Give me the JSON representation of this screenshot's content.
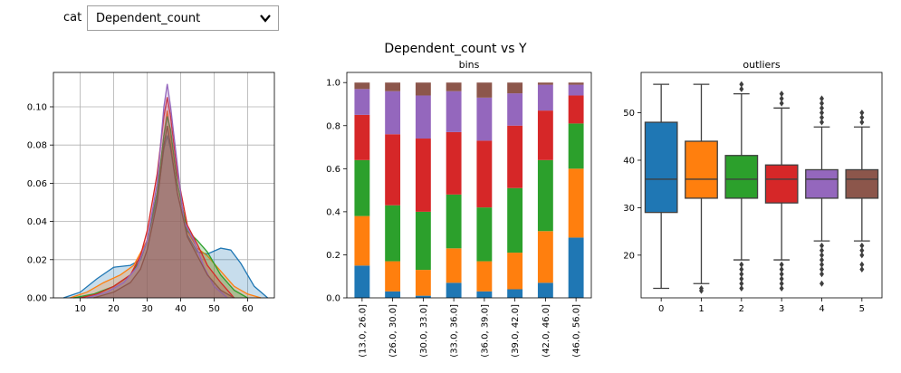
{
  "widget": {
    "label": "cat",
    "selected": "Dependent_count"
  },
  "colors": [
    "#1f77b4",
    "#ff7f0e",
    "#2ca02c",
    "#d62728",
    "#9467bd",
    "#8c564b"
  ],
  "chart_data": [
    {
      "type": "area",
      "subtitle": "",
      "xlim": [
        2,
        68
      ],
      "ylim": [
        0,
        0.118
      ],
      "xticks": [
        10,
        20,
        30,
        40,
        50,
        60
      ],
      "yticks": [
        0.0,
        0.02,
        0.04,
        0.06,
        0.08,
        0.1
      ],
      "ytick_labels": [
        "0.00",
        "0.02",
        "0.04",
        "0.06",
        "0.08",
        "0.10"
      ],
      "grid": true,
      "series": [
        {
          "x": [
            5,
            10,
            15,
            20,
            25,
            28,
            30,
            33,
            35,
            36,
            37,
            39,
            42,
            45,
            48,
            52,
            55,
            58,
            62,
            66
          ],
          "y": [
            0,
            0.003,
            0.01,
            0.016,
            0.017,
            0.02,
            0.03,
            0.052,
            0.078,
            0.085,
            0.078,
            0.055,
            0.033,
            0.024,
            0.023,
            0.026,
            0.025,
            0.018,
            0.006,
            0
          ]
        },
        {
          "x": [
            7,
            12,
            17,
            22,
            26,
            30,
            33,
            35,
            36,
            37,
            39,
            42,
            45,
            48,
            52,
            56,
            60,
            64
          ],
          "y": [
            0,
            0.003,
            0.008,
            0.012,
            0.017,
            0.03,
            0.055,
            0.085,
            0.098,
            0.085,
            0.06,
            0.035,
            0.026,
            0.022,
            0.014,
            0.006,
            0.002,
            0
          ]
        },
        {
          "x": [
            8,
            14,
            20,
            25,
            28,
            30,
            33,
            35,
            36,
            37,
            39,
            42,
            45,
            48,
            52,
            56,
            60
          ],
          "y": [
            0,
            0.002,
            0.006,
            0.012,
            0.02,
            0.03,
            0.055,
            0.085,
            0.095,
            0.088,
            0.06,
            0.035,
            0.03,
            0.024,
            0.012,
            0.004,
            0
          ]
        },
        {
          "x": [
            10,
            15,
            20,
            25,
            28,
            30,
            33,
            35,
            36,
            37,
            39,
            42,
            45,
            48,
            52,
            56
          ],
          "y": [
            0,
            0.002,
            0.006,
            0.012,
            0.022,
            0.035,
            0.065,
            0.095,
            0.105,
            0.095,
            0.065,
            0.038,
            0.028,
            0.017,
            0.008,
            0
          ]
        },
        {
          "x": [
            12,
            18,
            23,
            27,
            30,
            33,
            35,
            36,
            37,
            39,
            41,
            44,
            47,
            50,
            54
          ],
          "y": [
            0,
            0.003,
            0.008,
            0.016,
            0.03,
            0.06,
            0.1,
            0.112,
            0.1,
            0.07,
            0.04,
            0.03,
            0.016,
            0.006,
            0
          ]
        },
        {
          "x": [
            14,
            20,
            25,
            28,
            30,
            33,
            35,
            36,
            37,
            39,
            42,
            45,
            48,
            52,
            56
          ],
          "y": [
            0,
            0.003,
            0.008,
            0.015,
            0.025,
            0.05,
            0.08,
            0.09,
            0.08,
            0.055,
            0.032,
            0.022,
            0.012,
            0.004,
            0
          ]
        }
      ]
    },
    {
      "type": "bar",
      "subtitle": "bins",
      "stacked": true,
      "categories": [
        "(13.0, 26.0]",
        "(26.0, 30.0]",
        "(30.0, 33.0]",
        "(33.0, 36.0]",
        "(36.0, 39.0]",
        "(39.0, 42.0]",
        "(42.0, 46.0]",
        "(46.0, 56.0]"
      ],
      "ylim": [
        0,
        1.0
      ],
      "yticks": [
        0.0,
        0.2,
        0.4,
        0.6,
        0.8,
        1.0
      ],
      "ytick_labels": [
        "0.0",
        "0.2",
        "0.4",
        "0.6",
        "0.8",
        "1.0"
      ],
      "series": [
        {
          "values": [
            0.15,
            0.03,
            0.01,
            0.07,
            0.03,
            0.04,
            0.07,
            0.28
          ]
        },
        {
          "values": [
            0.23,
            0.14,
            0.12,
            0.16,
            0.14,
            0.17,
            0.24,
            0.32
          ]
        },
        {
          "values": [
            0.26,
            0.26,
            0.27,
            0.25,
            0.25,
            0.3,
            0.33,
            0.21
          ]
        },
        {
          "values": [
            0.21,
            0.33,
            0.34,
            0.29,
            0.31,
            0.29,
            0.23,
            0.13
          ]
        },
        {
          "values": [
            0.12,
            0.2,
            0.2,
            0.19,
            0.2,
            0.15,
            0.12,
            0.05
          ]
        },
        {
          "values": [
            0.03,
            0.04,
            0.06,
            0.04,
            0.07,
            0.05,
            0.01,
            0.01
          ]
        }
      ]
    },
    {
      "type": "box",
      "subtitle": "outliers",
      "categories": [
        "0",
        "1",
        "2",
        "3",
        "4",
        "5"
      ],
      "ylim": [
        11,
        58.5
      ],
      "yticks": [
        20,
        30,
        40,
        50
      ],
      "ytick_labels": [
        "20",
        "30",
        "40",
        "50"
      ],
      "boxes": [
        {
          "whislo": 13,
          "q1": 29,
          "med": 36,
          "q3": 48,
          "whishi": 56,
          "fliers": []
        },
        {
          "whislo": 14,
          "q1": 32,
          "med": 36,
          "q3": 44,
          "whishi": 56,
          "fliers": [
            13,
            12.5
          ]
        },
        {
          "whislo": 19,
          "q1": 32,
          "med": 36,
          "q3": 41,
          "whishi": 54,
          "fliers": [
            13,
            14,
            15,
            16,
            17,
            18,
            55,
            56
          ]
        },
        {
          "whislo": 19,
          "q1": 31,
          "med": 36,
          "q3": 39,
          "whishi": 51,
          "fliers": [
            13,
            14,
            15,
            16,
            17,
            18,
            52,
            53,
            54
          ]
        },
        {
          "whislo": 23,
          "q1": 32,
          "med": 36,
          "q3": 38,
          "whishi": 47,
          "fliers": [
            14,
            16,
            17,
            18,
            19,
            20,
            21,
            22,
            48,
            49,
            50,
            51,
            52,
            53
          ]
        },
        {
          "whislo": 23,
          "q1": 32,
          "med": 36,
          "q3": 38,
          "whishi": 47,
          "fliers": [
            17,
            18,
            20,
            21,
            22,
            48,
            49,
            50
          ]
        }
      ]
    }
  ],
  "suptitle": "Dependent_count   vs   Y"
}
